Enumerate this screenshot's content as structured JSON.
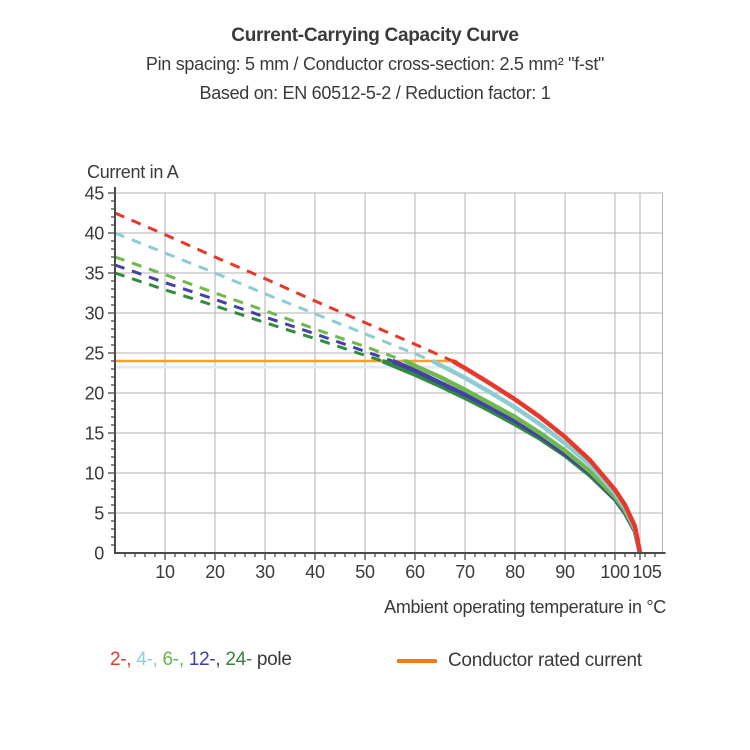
{
  "header": {
    "title": "Current-Carrying Capacity Curve",
    "subtitle1": "Pin spacing: 5 mm / Conductor cross-section: 2.5 mm² \"f-st\"",
    "subtitle2": "Based on: EN 60512-5-2 / Reduction factor: 1"
  },
  "axes": {
    "y_title": "Current in A",
    "x_title": "Ambient operating temperature in °C"
  },
  "legend": {
    "pole_items": [
      {
        "label": "2-",
        "color": "#e6372b"
      },
      {
        "label": "4-",
        "color": "#94ccd4"
      },
      {
        "label": "6-",
        "color": "#68b54c"
      },
      {
        "label": "12-",
        "color": "#403ea6"
      },
      {
        "label": "24-",
        "color": "#37823c"
      }
    ],
    "pole_suffix": "pole",
    "rated_label": "Conductor rated current",
    "rated_swatch_color": "#ee7c1f"
  },
  "colors": {
    "text": "#3a3a39",
    "grid": "#b3b3b3",
    "axis": "#4a4a49",
    "rated_line": "#f6a02d",
    "rated_line_glow": "#dfeef6"
  },
  "chart_data": {
    "type": "line",
    "title": "Current-Carrying Capacity Curve",
    "xlabel": "Ambient operating temperature in °C",
    "ylabel": "Current in A",
    "xlim": [
      0,
      109.5
    ],
    "ylim": [
      0,
      45
    ],
    "x_ticks_major": [
      10,
      20,
      30,
      40,
      50,
      60,
      70,
      80,
      90,
      100,
      105
    ],
    "x_minor_step": 2,
    "y_ticks_major": [
      0,
      5,
      10,
      15,
      20,
      25,
      30,
      35,
      40,
      45
    ],
    "y_minor_step": 1,
    "grid": true,
    "legend_position": "bottom",
    "rated_current": {
      "label": "Conductor rated current",
      "value": 24,
      "x_start": 0,
      "x_end": 68.5,
      "color": "#f6a02d"
    },
    "series": [
      {
        "name": "24-pole",
        "color": "#2f8c3e",
        "start_current_at_0C": 35,
        "meets_rated_at_C": 53.5,
        "zero_current_at_C": 105,
        "dashed_points": [
          [
            0,
            35
          ],
          [
            10,
            32.9
          ],
          [
            20,
            30.9
          ],
          [
            30,
            28.8
          ],
          [
            40,
            26.8
          ],
          [
            50,
            24.7
          ],
          [
            53.5,
            24
          ]
        ],
        "solid_points": [
          [
            53.5,
            24
          ],
          [
            55,
            23.6
          ],
          [
            60,
            22.3
          ],
          [
            65,
            20.9
          ],
          [
            70,
            19.4
          ],
          [
            75,
            17.8
          ],
          [
            80,
            16.1
          ],
          [
            85,
            14.3
          ],
          [
            90,
            12.2
          ],
          [
            95,
            9.7
          ],
          [
            100,
            6.7
          ],
          [
            102,
            5
          ],
          [
            104,
            2.7
          ],
          [
            105,
            0
          ]
        ]
      },
      {
        "name": "12-pole",
        "color": "#4440a8",
        "start_current_at_0C": 36,
        "meets_rated_at_C": 55.5,
        "zero_current_at_C": 105,
        "dashed_points": [
          [
            0,
            36
          ],
          [
            10,
            33.8
          ],
          [
            20,
            31.7
          ],
          [
            30,
            29.5
          ],
          [
            40,
            27.4
          ],
          [
            50,
            25.2
          ],
          [
            55.5,
            24
          ]
        ],
        "solid_points": [
          [
            55.5,
            24
          ],
          [
            60,
            22.8
          ],
          [
            65,
            21.3
          ],
          [
            70,
            19.8
          ],
          [
            75,
            18.2
          ],
          [
            80,
            16.5
          ],
          [
            85,
            14.6
          ],
          [
            90,
            12.4
          ],
          [
            95,
            10
          ],
          [
            100,
            6.8
          ],
          [
            102,
            5.1
          ],
          [
            104,
            2.8
          ],
          [
            105,
            0
          ]
        ]
      },
      {
        "name": "6-pole",
        "color": "#6fb84e",
        "start_current_at_0C": 37,
        "meets_rated_at_C": 58,
        "zero_current_at_C": 105,
        "dashed_points": [
          [
            0,
            37
          ],
          [
            10,
            34.8
          ],
          [
            20,
            32.5
          ],
          [
            30,
            30.3
          ],
          [
            40,
            28
          ],
          [
            50,
            25.8
          ],
          [
            58,
            24
          ]
        ],
        "solid_points": [
          [
            58,
            24
          ],
          [
            60,
            23.4
          ],
          [
            65,
            22
          ],
          [
            70,
            20.4
          ],
          [
            75,
            18.7
          ],
          [
            80,
            17
          ],
          [
            85,
            15
          ],
          [
            90,
            12.8
          ],
          [
            95,
            10.2
          ],
          [
            100,
            7
          ],
          [
            102,
            5.3
          ],
          [
            104,
            2.9
          ],
          [
            105,
            0
          ]
        ]
      },
      {
        "name": "4-pole",
        "color": "#8cccd3",
        "start_current_at_0C": 40,
        "meets_rated_at_C": 63.5,
        "zero_current_at_C": 105,
        "dashed_points": [
          [
            0,
            40
          ],
          [
            10,
            37.5
          ],
          [
            20,
            35
          ],
          [
            30,
            32.4
          ],
          [
            40,
            29.9
          ],
          [
            50,
            27.4
          ],
          [
            60,
            24.9
          ],
          [
            63.5,
            24
          ]
        ],
        "solid_points": [
          [
            63.5,
            24
          ],
          [
            65,
            23.5
          ],
          [
            70,
            21.9
          ],
          [
            75,
            20.1
          ],
          [
            80,
            18.2
          ],
          [
            85,
            16.1
          ],
          [
            90,
            13.7
          ],
          [
            95,
            11
          ],
          [
            100,
            7.5
          ],
          [
            102,
            5.7
          ],
          [
            104,
            3.1
          ],
          [
            105,
            0
          ]
        ]
      },
      {
        "name": "2-pole",
        "color": "#e6392c",
        "start_current_at_0C": 42.5,
        "meets_rated_at_C": 67.5,
        "zero_current_at_C": 105,
        "dashed_points": [
          [
            0,
            42.5
          ],
          [
            10,
            39.8
          ],
          [
            20,
            37
          ],
          [
            30,
            34.3
          ],
          [
            40,
            31.5
          ],
          [
            50,
            28.8
          ],
          [
            60,
            26.1
          ],
          [
            67.5,
            24
          ]
        ],
        "solid_points": [
          [
            67.5,
            24
          ],
          [
            70,
            23.1
          ],
          [
            75,
            21.2
          ],
          [
            80,
            19.2
          ],
          [
            85,
            17
          ],
          [
            90,
            14.5
          ],
          [
            95,
            11.6
          ],
          [
            100,
            7.9
          ],
          [
            102,
            6
          ],
          [
            104,
            3.3
          ],
          [
            105,
            0
          ]
        ]
      }
    ]
  }
}
